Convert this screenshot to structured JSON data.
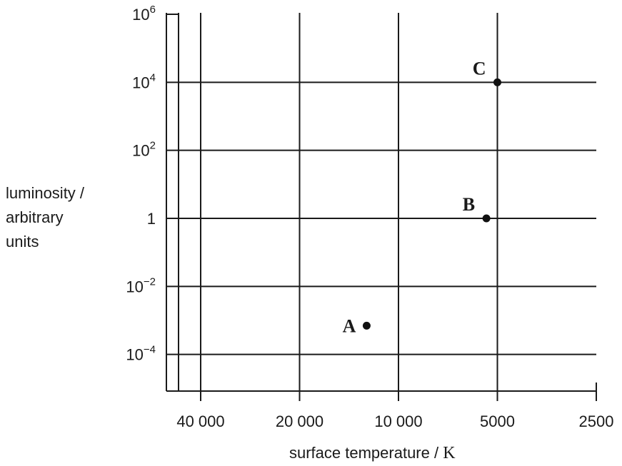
{
  "chart_data": {
    "type": "scatter",
    "title": "",
    "xlabel": "surface temperature",
    "xlabel_unit": "K",
    "ylabel": [
      "luminosity /",
      "arbitrary",
      "units"
    ],
    "x_scale": "log-reversed",
    "y_scale": "log",
    "xlim": [
      45000,
      2500
    ],
    "ylim": [
      5e-06,
      1000000
    ],
    "x_ticks": [
      {
        "value": 40000,
        "label": "40 000"
      },
      {
        "value": 20000,
        "label": "20 000"
      },
      {
        "value": 10000,
        "label": "10 000"
      },
      {
        "value": 5000,
        "label": "5000"
      },
      {
        "value": 2500,
        "label": "2500"
      }
    ],
    "y_ticks": [
      {
        "value": 1000000,
        "base": "10",
        "exp": "6"
      },
      {
        "value": 10000,
        "base": "10",
        "exp": "4"
      },
      {
        "value": 100,
        "base": "10",
        "exp": "2"
      },
      {
        "value": 1,
        "base": "1",
        "exp": ""
      },
      {
        "value": 0.01,
        "base": "10",
        "exp": "−2"
      },
      {
        "value": 0.0001,
        "base": "10",
        "exp": "−4"
      }
    ],
    "grid": true,
    "points": [
      {
        "label": "A",
        "x": 12500,
        "y": 0.0007
      },
      {
        "label": "B",
        "x": 5400,
        "y": 1
      },
      {
        "label": "C",
        "x": 5000,
        "y": 10000
      }
    ]
  }
}
